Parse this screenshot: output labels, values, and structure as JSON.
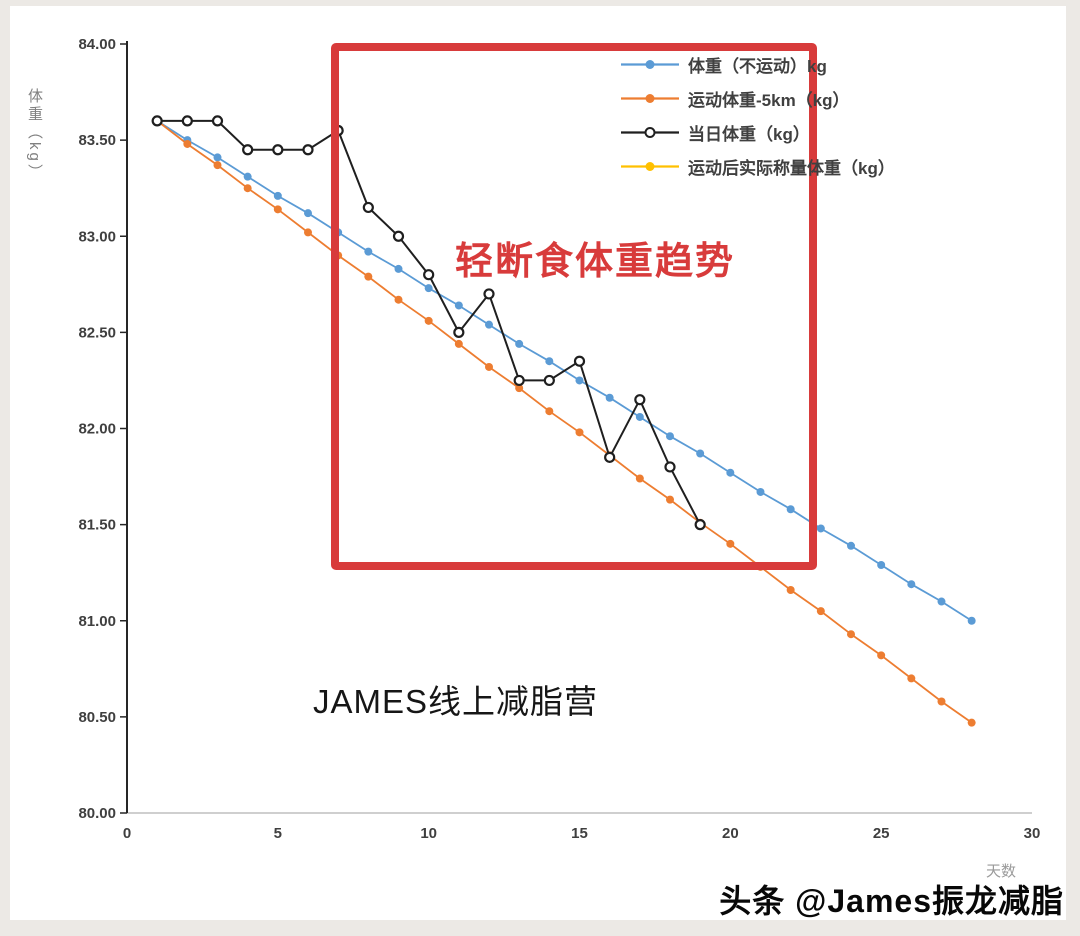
{
  "chart_data": {
    "type": "line",
    "title": "",
    "ylabel": "体重（kg）",
    "xlabel": "天数",
    "xlim": [
      0,
      30
    ],
    "ylim": [
      80.0,
      84.0
    ],
    "grid": false,
    "legend_position": "top-right",
    "x_ticks": [
      "0",
      "5",
      "10",
      "15",
      "20",
      "25",
      "30"
    ],
    "y_ticks": [
      "84.00",
      "83.50",
      "83.00",
      "82.50",
      "82.00",
      "81.50",
      "81.00",
      "80.50",
      "80.00"
    ],
    "series": [
      {
        "name": "体重（不运动）kg",
        "color": "#5B9BD5",
        "marker": "filled",
        "x": [
          1,
          2,
          3,
          4,
          5,
          6,
          7,
          8,
          9,
          10,
          11,
          12,
          13,
          14,
          15,
          16,
          17,
          18,
          19,
          20,
          21,
          22,
          23,
          24,
          25,
          26,
          27,
          28
        ],
        "y": [
          83.6,
          83.5,
          83.41,
          83.31,
          83.21,
          83.12,
          83.02,
          82.92,
          82.83,
          82.73,
          82.64,
          82.54,
          82.44,
          82.35,
          82.25,
          82.16,
          82.06,
          81.96,
          81.87,
          81.77,
          81.67,
          81.58,
          81.48,
          81.39,
          81.29,
          81.19,
          81.1,
          81.0
        ]
      },
      {
        "name": "运动体重-5km（kg）",
        "color": "#ED7D31",
        "marker": "filled",
        "x": [
          1,
          2,
          3,
          4,
          5,
          6,
          7,
          8,
          9,
          10,
          11,
          12,
          13,
          14,
          15,
          16,
          17,
          18,
          19,
          20,
          21,
          22,
          23,
          24,
          25,
          26,
          27,
          28
        ],
        "y": [
          83.6,
          83.48,
          83.37,
          83.25,
          83.14,
          83.02,
          82.9,
          82.79,
          82.67,
          82.56,
          82.44,
          82.32,
          82.21,
          82.09,
          81.98,
          81.86,
          81.74,
          81.63,
          81.51,
          81.4,
          81.28,
          81.16,
          81.05,
          80.93,
          80.82,
          80.7,
          80.58,
          80.47
        ]
      },
      {
        "name": "当日体重（kg）",
        "color": "#1f1f1f",
        "marker": "open",
        "x": [
          1,
          2,
          3,
          4,
          5,
          6,
          7,
          8,
          9,
          10,
          11,
          12,
          13,
          14,
          15,
          16,
          17,
          18,
          19
        ],
        "y": [
          83.6,
          83.6,
          83.6,
          83.45,
          83.45,
          83.45,
          83.55,
          83.15,
          83.0,
          82.8,
          82.5,
          82.7,
          82.25,
          82.25,
          82.35,
          81.85,
          82.15,
          81.8,
          81.5
        ]
      },
      {
        "name": "运动后实际称量体重（kg）",
        "color": "#FFC000",
        "marker": "filled",
        "x": [],
        "y": []
      }
    ],
    "annotations": {
      "highlight_title": "轻断食体重趋势",
      "highlight_box_color": "#d83b3b",
      "camp_watermark": "JAMES线上减脂营",
      "footer_watermark": "头条 @James振龙减脂"
    }
  }
}
